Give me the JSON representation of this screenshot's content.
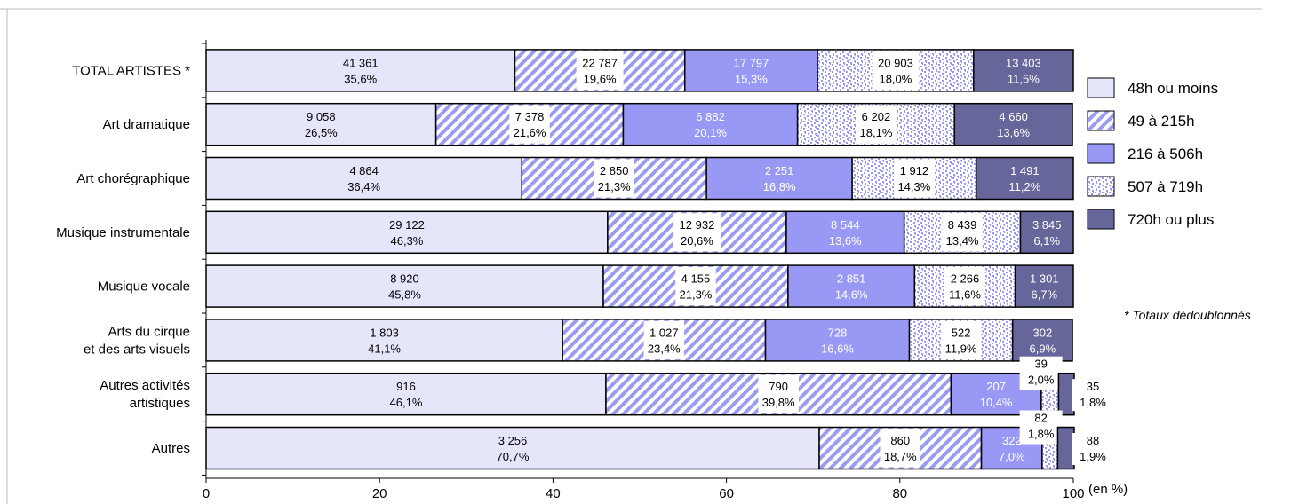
{
  "chart_data": {
    "type": "bar",
    "orientation": "horizontal",
    "stacked": true,
    "categories": [
      "TOTAL ARTISTES *",
      "Art dramatique",
      "Art chorégraphique",
      "Musique instrumentale",
      "Musique vocale",
      "Arts du cirque\net des arts visuels",
      "Autres activités\nartistiques",
      "Autres"
    ],
    "series": [
      {
        "name": "48h ou moins",
        "percent": [
          35.6,
          26.5,
          36.4,
          46.3,
          45.8,
          41.1,
          46.1,
          70.7
        ],
        "count_labels": [
          "41 361",
          "9 058",
          "4 864",
          "29 122",
          "8 920",
          "1 803",
          "916",
          "3 256"
        ],
        "pct_labels": [
          "35,6%",
          "26,5%",
          "36,4%",
          "46,3%",
          "45,8%",
          "41,1%",
          "46,1%",
          "70,7%"
        ],
        "color": "#e6e6fb",
        "pattern": "solid"
      },
      {
        "name": "49 à 215h",
        "percent": [
          19.6,
          21.6,
          21.3,
          20.6,
          21.3,
          23.4,
          39.8,
          18.7
        ],
        "count_labels": [
          "22 787",
          "7 378",
          "2 850",
          "12 932",
          "4 155",
          "1 027",
          "790",
          "860"
        ],
        "pct_labels": [
          "19,6%",
          "21,6%",
          "21,3%",
          "20,6%",
          "21,3%",
          "23,4%",
          "39,8%",
          "18,7%"
        ],
        "color": "#9a9cf0",
        "pattern": "diagonal"
      },
      {
        "name": "216 à 506h",
        "percent": [
          15.3,
          20.1,
          16.8,
          13.6,
          14.6,
          16.6,
          10.4,
          7.0
        ],
        "count_labels": [
          "17 797",
          "6 882",
          "2 251",
          "8 544",
          "2 851",
          "728",
          "207",
          "322"
        ],
        "pct_labels": [
          "15,3%",
          "20,1%",
          "16,8%",
          "13,6%",
          "14,6%",
          "16,6%",
          "10,4%",
          "7,0%"
        ],
        "color": "#9999f5",
        "pattern": "solid"
      },
      {
        "name": "507 à 719h",
        "percent": [
          18.0,
          18.1,
          14.3,
          13.4,
          11.6,
          11.9,
          2.0,
          1.8
        ],
        "count_labels": [
          "20 903",
          "6 202",
          "1 912",
          "8 439",
          "2 266",
          "522",
          "39",
          "82"
        ],
        "pct_labels": [
          "18,0%",
          "18,1%",
          "14,3%",
          "13,4%",
          "11,6%",
          "11,9%",
          "2,0%",
          "1,8%"
        ],
        "color": "#9999f5",
        "pattern": "dots"
      },
      {
        "name": "720h ou plus",
        "percent": [
          11.5,
          13.6,
          11.2,
          6.1,
          6.7,
          6.9,
          1.8,
          1.9
        ],
        "count_labels": [
          "13 403",
          "4 660",
          "1 491",
          "3 845",
          "1 301",
          "302",
          "35",
          "88"
        ],
        "pct_labels": [
          "11,5%",
          "13,6%",
          "11,2%",
          "6,1%",
          "6,7%",
          "6,9%",
          "1,8%",
          "1,9%"
        ],
        "color": "#66669a",
        "pattern": "solid"
      }
    ],
    "xlim": [
      0,
      100
    ],
    "xticks": [
      "0",
      "20",
      "40",
      "60",
      "80",
      "100"
    ],
    "xlabel": "(en %)",
    "legend_position": "right",
    "note": "* Totaux dédoublonnés",
    "grid": false
  }
}
